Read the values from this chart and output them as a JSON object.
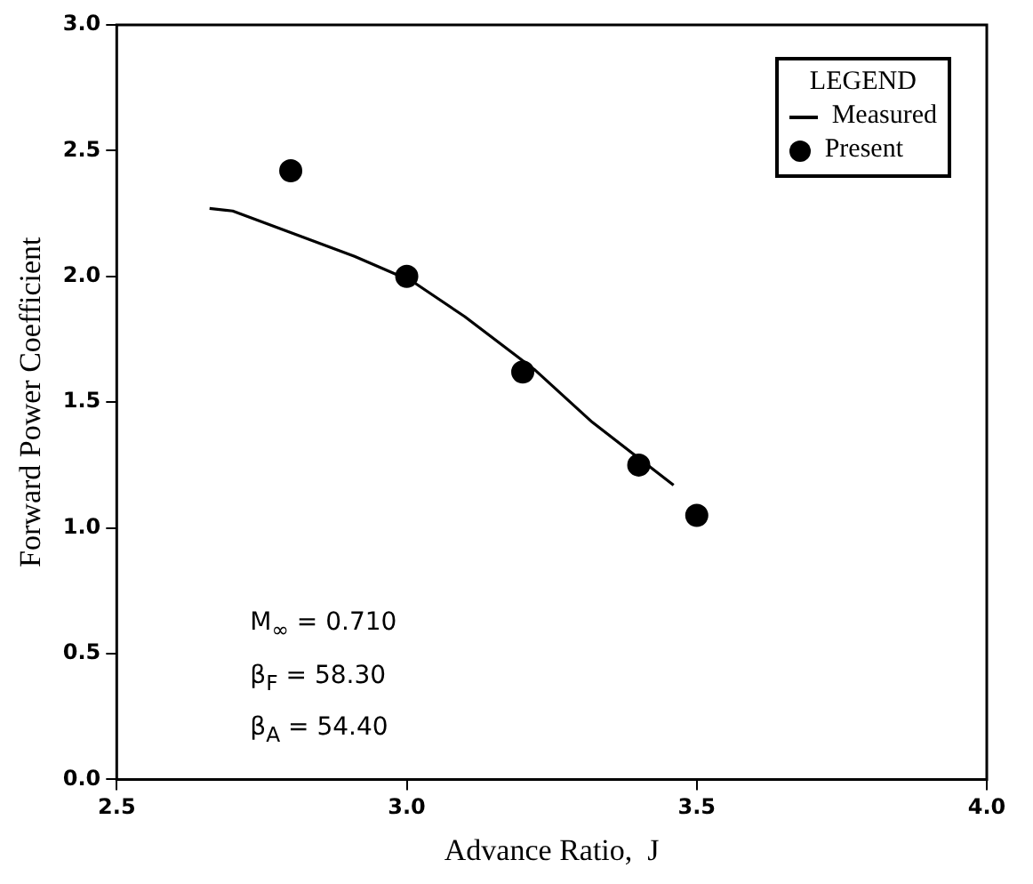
{
  "chart_data": {
    "type": "scatter",
    "xlabel": "Advance Ratio,  J",
    "ylabel": "Forward Power Coefficient",
    "legend_title": "LEGEND",
    "xlim": [
      2.5,
      4.0
    ],
    "xticks": [
      {
        "value": 2.5,
        "label": "2.5"
      },
      {
        "value": 3.0,
        "label": "3.0"
      },
      {
        "value": 3.5,
        "label": "3.5"
      },
      {
        "value": 4.0,
        "label": "4.0"
      }
    ],
    "ylim": [
      0,
      3.0
    ],
    "yticks": [
      {
        "value": 0,
        "label": "0.0"
      },
      {
        "value": 0.5,
        "label": "0.5"
      },
      {
        "value": 1.0,
        "label": "1.0"
      },
      {
        "value": 1.5,
        "label": "1.5"
      },
      {
        "value": 2.0,
        "label": "2.0"
      },
      {
        "value": 2.5,
        "label": "2.5"
      },
      {
        "value": 3.0,
        "label": "3.0"
      }
    ],
    "grid": false,
    "legend": "top right",
    "series": [
      {
        "name": "Measured",
        "type": "line",
        "color": "#000000",
        "marker": "none",
        "line_style": "solid",
        "x": [
          2.66,
          2.7,
          2.91,
          3.01,
          3.1,
          3.22,
          3.32,
          3.46
        ],
        "values": [
          2.27,
          2.26,
          2.08,
          1.98,
          1.84,
          1.63,
          1.42,
          1.17
        ]
      },
      {
        "name": "Present",
        "color": "#000000",
        "marker": "circle",
        "x": [
          2.8,
          3.0,
          3.2,
          3.4,
          3.5
        ],
        "values": [
          2.42,
          2.0,
          1.62,
          1.25,
          1.05
        ]
      }
    ],
    "annotations": [
      "M$_{∞}$ = 0.710",
      "β$_{F}$ = 58.30",
      "β$_{A}$ = 54.40"
    ]
  }
}
